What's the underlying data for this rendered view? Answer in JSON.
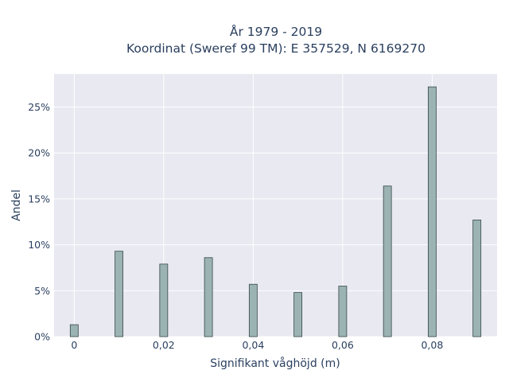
{
  "chart_data": {
    "type": "bar",
    "title_lines": [
      "År 1979 - 2019",
      "Koordinat (Sweref 99 TM): E 357529, N 6169270"
    ],
    "xlabel": "Signifikant våghöjd (m)",
    "ylabel": "Andel",
    "x": [
      0,
      0.01,
      0.02,
      0.03,
      0.04,
      0.05,
      0.06,
      0.07,
      0.08,
      0.09
    ],
    "values": [
      1.3,
      9.3,
      7.9,
      8.6,
      5.7,
      4.8,
      5.5,
      16.4,
      27.2,
      12.7
    ],
    "value_unit": "%",
    "x_ticks": [
      0,
      0.02,
      0.04,
      0.06,
      0.08
    ],
    "x_tick_labels": [
      "0",
      "0,02",
      "0,04",
      "0,06",
      "0,08"
    ],
    "y_ticks": [
      0,
      5,
      10,
      15,
      20,
      25
    ],
    "y_tick_labels": [
      "0%",
      "5%",
      "10%",
      "15%",
      "20%",
      "25%"
    ],
    "xlim": [
      -0.0045,
      0.0945
    ],
    "ylim": [
      0,
      28.6
    ],
    "grid": true,
    "colors": {
      "bar_fill": "#9bb3b3",
      "bar_stroke": "#37474a",
      "plot_bg": "#e8e9f1",
      "grid": "#ffffff",
      "text": "#2a3f5f"
    }
  }
}
